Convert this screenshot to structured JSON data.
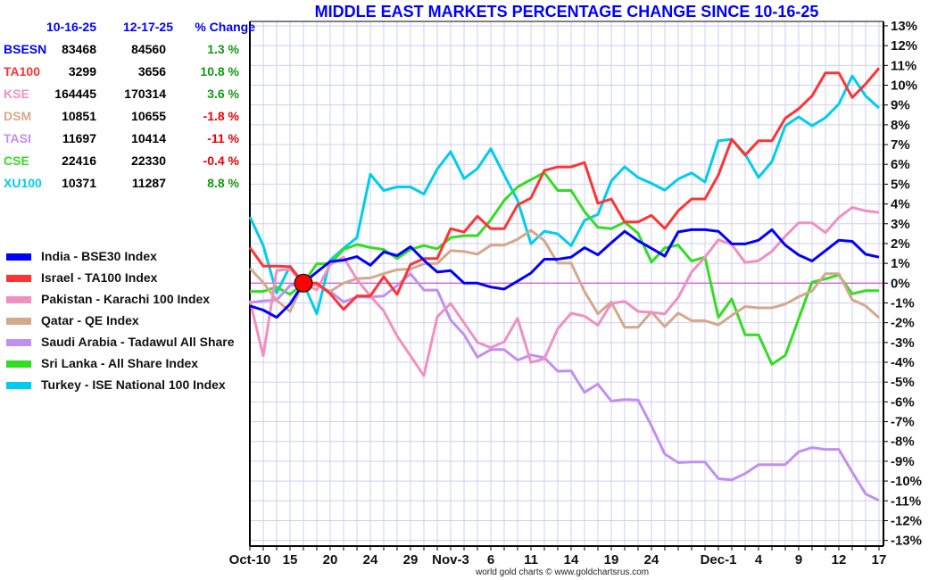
{
  "table": {
    "headers": [
      "10-16-25",
      "12-17-25",
      "% Change"
    ],
    "rows": [
      {
        "code": "BSESN",
        "start": "83468",
        "end": "84560",
        "change": "1.3 %",
        "color": "#0000ff",
        "change_color": "#119911"
      },
      {
        "code": "TA100",
        "start": "3299",
        "end": "3656",
        "change": "10.8 %",
        "color": "#ff3333",
        "change_color": "#119911"
      },
      {
        "code": "KSE",
        "start": "164445",
        "end": "170314",
        "change": "3.6 %",
        "color": "#f090c0",
        "change_color": "#119911"
      },
      {
        "code": "DSM",
        "start": "10851",
        "end": "10655",
        "change": "-1.8 %",
        "color": "#d4a88c",
        "change_color": "#ee0000"
      },
      {
        "code": "TASI",
        "start": "11697",
        "end": "10414",
        "change": "-11 %",
        "color": "#c090f0",
        "change_color": "#ee0000"
      },
      {
        "code": "CSE",
        "start": "22416",
        "end": "22330",
        "change": "-0.4 %",
        "color": "#33dd22",
        "change_color": "#ee0000"
      },
      {
        "code": "XU100",
        "start": "10371",
        "end": "11287",
        "change": "8.8 %",
        "color": "#00ccf0",
        "change_color": "#119911"
      }
    ]
  },
  "footer": "world gold charts © www.goldchartsrus.com",
  "chart_data": {
    "type": "line",
    "title": "MIDDLE EAST MARKETS PERCENTAGE CHANGE SINCE 10-16-25",
    "xlabel": "",
    "ylabel": "",
    "ylim": [
      -13,
      13
    ],
    "y_ticks": [
      13,
      12,
      11,
      10,
      9,
      8,
      7,
      6,
      5,
      4,
      3,
      2,
      1,
      0,
      -1,
      -2,
      -3,
      -4,
      -5,
      -6,
      -7,
      -8,
      -9,
      -10,
      -11,
      -12,
      -13
    ],
    "y_tick_suffix": "%",
    "x_count": 48,
    "x_ticks": [
      {
        "label": "Oct-10",
        "i": 0
      },
      {
        "label": "15",
        "i": 3
      },
      {
        "label": "20",
        "i": 6
      },
      {
        "label": "24",
        "i": 9
      },
      {
        "label": "29",
        "i": 12
      },
      {
        "label": "Nov-3",
        "i": 15
      },
      {
        "label": "6",
        "i": 18
      },
      {
        "label": "11",
        "i": 21
      },
      {
        "label": "14",
        "i": 24
      },
      {
        "label": "19",
        "i": 27
      },
      {
        "label": "24",
        "i": 30
      },
      {
        "label": "Dec-1",
        "i": 35
      },
      {
        "label": "4",
        "i": 38
      },
      {
        "label": "9",
        "i": 41
      },
      {
        "label": "12",
        "i": 44
      },
      {
        "label": "17",
        "i": 47
      }
    ],
    "grid": true,
    "baseline_marker_index": 4,
    "legend_position": "left",
    "series": [
      {
        "name": "India - BSE30 Index",
        "color": "#0000ff",
        "values": [
          -1.15,
          -1.36,
          -1.73,
          -1.06,
          0,
          0.56,
          1.09,
          1.16,
          1.34,
          0.9,
          1.58,
          1.39,
          1.84,
          1.16,
          0.56,
          0.63,
          0,
          0,
          -0.2,
          -0.3,
          0.1,
          0.51,
          1.21,
          1.21,
          1.31,
          1.79,
          1.43,
          2.04,
          2.62,
          2.14,
          1.76,
          1.36,
          2.59,
          2.7,
          2.7,
          2.62,
          1.99,
          1.98,
          2.17,
          2.7,
          1.92,
          1.42,
          1.12,
          1.64,
          2.17,
          2.11,
          1.46,
          1.31
        ]
      },
      {
        "name": "Israel - TA100 Index",
        "color": "#ff3333",
        "values": [
          1.8,
          0.86,
          0.86,
          0.83,
          0,
          0,
          -0.53,
          -1.33,
          -0.65,
          -0.65,
          0.33,
          -0.57,
          0.94,
          1.24,
          1.24,
          2.75,
          2.58,
          3.38,
          2.75,
          2.75,
          3.95,
          4.3,
          5.69,
          5.87,
          5.87,
          6.09,
          4.03,
          4.25,
          3.09,
          3.09,
          3.42,
          2.76,
          3.65,
          4.25,
          4.25,
          5.46,
          7.27,
          6.47,
          7.19,
          7.19,
          8.33,
          8.81,
          9.46,
          10.62,
          10.62,
          9.38,
          10.06,
          10.86
        ]
      },
      {
        "name": "Pakistan - Karachi 100 Index",
        "color": "#f090c0",
        "values": [
          -0.87,
          -3.67,
          0.63,
          0.71,
          0,
          -0.35,
          0.94,
          1.31,
          0.18,
          -0.65,
          -1.4,
          -2.68,
          -3.67,
          -4.68,
          -1.7,
          -1.03,
          -2.0,
          -2.99,
          -3.26,
          -2.96,
          -1.78,
          -4.01,
          -3.82,
          -2.31,
          -1.52,
          -1.67,
          -2.13,
          -1.03,
          -0.92,
          -1.43,
          -1.48,
          -1.55,
          -0.72,
          0.56,
          1.31,
          2.19,
          1.95,
          1.04,
          1.13,
          1.61,
          2.37,
          3.05,
          3.05,
          2.55,
          3.32,
          3.83,
          3.65,
          3.57
        ]
      },
      {
        "name": "Qatar - QE Index",
        "color": "#d4a88c",
        "values": [
          0.75,
          0.03,
          -0.87,
          -1.43,
          0,
          -0.12,
          -0.42,
          0,
          0.23,
          0.26,
          0.48,
          0.68,
          0.71,
          0.98,
          1.0,
          1.64,
          1.6,
          1.46,
          1.92,
          1.92,
          2.22,
          2.67,
          2.14,
          1.01,
          1.01,
          -0.42,
          -1.55,
          -0.95,
          -2.23,
          -2.23,
          -1.45,
          -2.2,
          -1.51,
          -1.9,
          -1.9,
          -2.11,
          -1.63,
          -1.18,
          -1.25,
          -1.25,
          -1.06,
          -0.69,
          -0.39,
          0.48,
          0.48,
          -0.84,
          -1.15,
          -1.75
        ]
      },
      {
        "name": "Saudi Arabia - Tadawul All Share",
        "color": "#c090f0",
        "values": [
          -0.98,
          -0.9,
          -0.85,
          -0.12,
          0,
          -0.1,
          -0.42,
          -0.95,
          -0.7,
          -0.7,
          -0.65,
          -0.12,
          0.48,
          -0.35,
          -0.35,
          -1.86,
          -2.6,
          -3.74,
          -3.36,
          -3.36,
          -3.89,
          -3.63,
          -3.77,
          -4.45,
          -4.43,
          -5.52,
          -5.1,
          -5.96,
          -5.88,
          -5.9,
          -7.21,
          -8.64,
          -9.07,
          -9.04,
          -9.04,
          -9.88,
          -9.94,
          -9.62,
          -9.17,
          -9.17,
          -9.17,
          -8.52,
          -8.31,
          -8.4,
          -8.4,
          -9.55,
          -10.65,
          -10.98
        ]
      },
      {
        "name": "Sri Lanka - All Share Index",
        "color": "#33dd22",
        "values": [
          -0.42,
          -0.42,
          -0.2,
          -0.57,
          0,
          0.98,
          0.98,
          1.7,
          1.95,
          1.8,
          1.7,
          1.24,
          1.7,
          1.9,
          1.73,
          2.3,
          2.4,
          2.4,
          3.2,
          4.18,
          4.86,
          5.23,
          5.58,
          4.68,
          4.68,
          3.62,
          2.82,
          2.75,
          3.08,
          2.52,
          1.06,
          1.78,
          1.92,
          1.12,
          1.31,
          -1.73,
          -0.8,
          -2.61,
          -2.61,
          -4.1,
          -3.65,
          -1.8,
          0.05,
          0.21,
          0.41,
          -0.54,
          -0.38,
          -0.38
        ]
      },
      {
        "name": "Turkey - ISE National 100 Index",
        "color": "#00ccf0",
        "values": [
          3.35,
          1.9,
          -0.5,
          0.86,
          0,
          -1.55,
          1.16,
          1.76,
          2.3,
          5.5,
          4.68,
          4.86,
          4.86,
          4.5,
          5.76,
          6.64,
          5.28,
          5.79,
          6.79,
          5.46,
          4.18,
          1.99,
          2.62,
          2.49,
          1.89,
          3.17,
          3.47,
          5.16,
          5.88,
          5.34,
          5.04,
          4.7,
          5.26,
          5.57,
          5.11,
          7.19,
          7.27,
          6.52,
          5.34,
          6.14,
          7.95,
          8.4,
          7.95,
          8.36,
          9.05,
          10.47,
          9.46,
          8.85
        ]
      }
    ]
  }
}
